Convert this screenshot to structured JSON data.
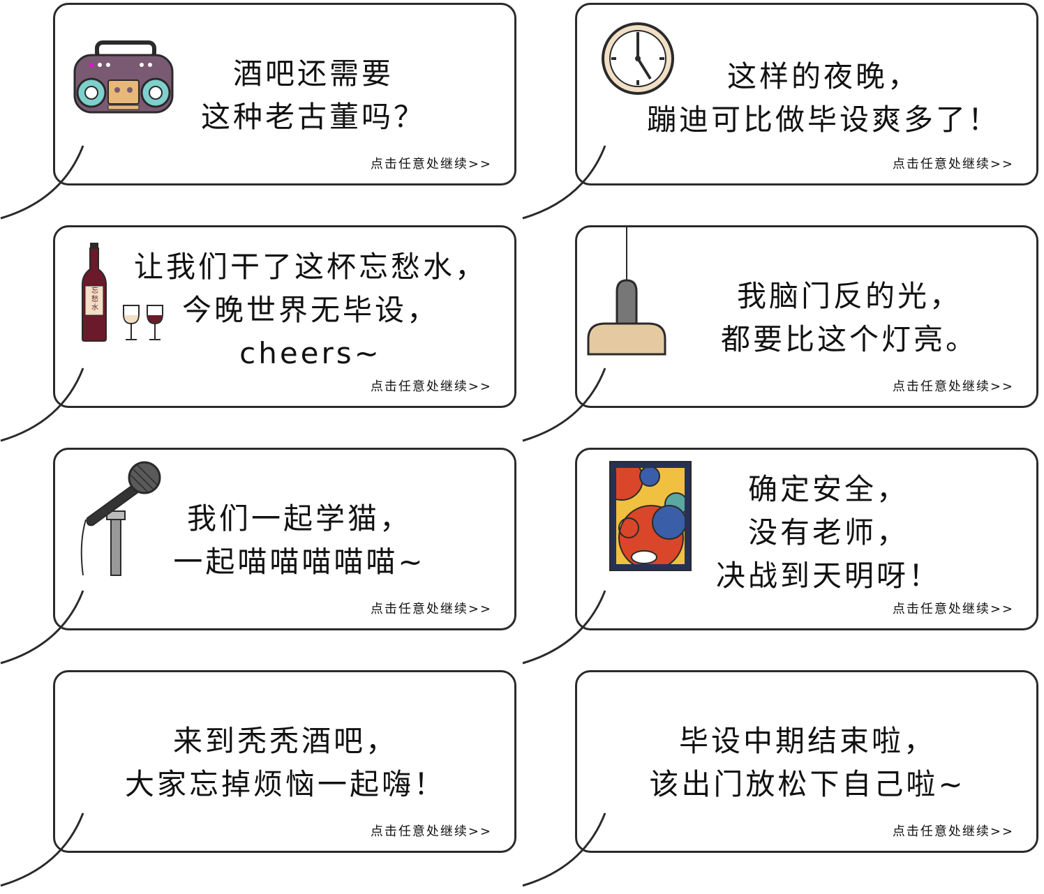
{
  "continue_label": "点击任意处继续>>",
  "cards": [
    {
      "text": "酒吧还需要\n这种老古董吗？",
      "icon": "boombox-icon"
    },
    {
      "text": "这样的夜晚，\n蹦迪可比做毕设爽多了！",
      "icon": "clock-icon"
    },
    {
      "text": "让我们干了这杯忘愁水，\n今晚世界无毕设，\ncheers~",
      "icon": "wine-icon",
      "bottle_label": "忘\n愁\n水"
    },
    {
      "text": "我脑门反的光，\n都要比这个灯亮。",
      "icon": "pendant-lamp-icon"
    },
    {
      "text": "我们一起学猫，\n一起喵喵喵喵喵~",
      "icon": "microphone-icon"
    },
    {
      "text": "确定安全，\n没有老师，\n决战到天明呀！",
      "icon": "abstract-painting-icon"
    },
    {
      "text": "来到秃秃酒吧，\n大家忘掉烦恼一起嗨！",
      "icon": ""
    },
    {
      "text": "毕设中期结束啦，\n该出门放松下自己啦~",
      "icon": ""
    }
  ],
  "colors": {
    "border": "#2a2a2a",
    "boombox": "#7a5a72",
    "speaker": "#7ed0cc",
    "cassette": "#e8b87a",
    "clock_face": "#f1dfc6",
    "wine": "#6a1a2a",
    "lamp_shade": "#e5c9a1",
    "lamp_socket": "#777777",
    "painting_red": "#d9462a",
    "painting_blue": "#3a5ea8",
    "painting_yellow": "#f0c040",
    "painting_teal": "#5aa8a0"
  }
}
